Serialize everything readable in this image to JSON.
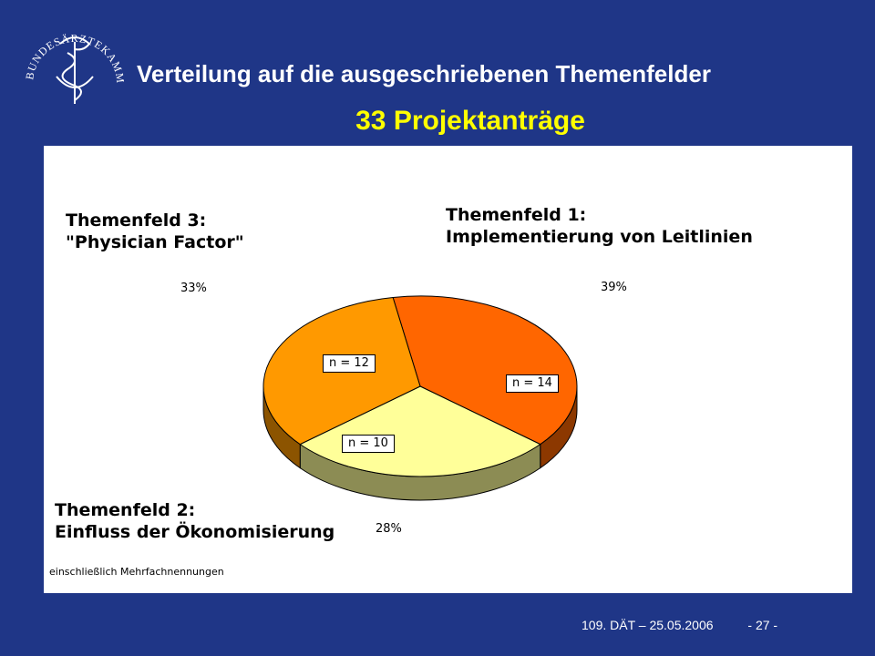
{
  "header": {
    "logo_text": "BUNDESÄRZTEKAMMER",
    "title": "Verteilung auf die ausgeschriebenen Themenfelder",
    "subtitle": "33 Projektanträge"
  },
  "chart_data": {
    "type": "pie",
    "title": "",
    "slices": [
      {
        "label_line1": "Themenfeld 1:",
        "label_line2": "Implementierung von Leitlinien",
        "percent_label": "39%",
        "n_label": "n = 14",
        "value": 14,
        "color": "#ff6600"
      },
      {
        "label_line1": "Themenfeld 2:",
        "label_line2": "Einfluss der Ökonomisierung",
        "percent_label": "28%",
        "n_label": "n = 10",
        "value": 10,
        "color": "#ffff99"
      },
      {
        "label_line1": "Themenfeld 3:",
        "label_line2": "\"Physician Factor\"",
        "percent_label": "33%",
        "n_label": "n = 12",
        "value": 12,
        "color": "#ff9900"
      }
    ],
    "note": "einschließlich Mehrfachnennungen"
  },
  "footer": {
    "event": "109. DÄT  –  25.05.2006",
    "page": "- 27 -"
  }
}
